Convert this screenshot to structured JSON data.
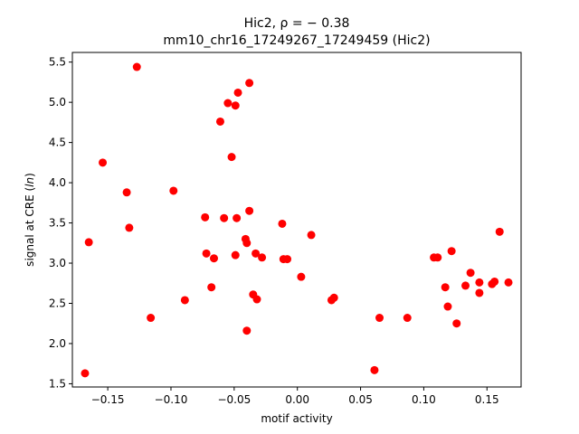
{
  "chart_data": {
    "type": "scatter",
    "title_line1": "Hic2, ρ = − 0.38",
    "title_line2": "mm10_chr16_17249267_17249459 (Hic2)",
    "xlabel": "motif activity",
    "ylabel": "signal at CRE (ln)",
    "xlim": [
      -0.178,
      0.177
    ],
    "ylim": [
      1.46,
      5.62
    ],
    "xticks": [
      -0.15,
      -0.1,
      -0.05,
      0.0,
      0.05,
      0.1,
      0.15
    ],
    "xtick_labels": [
      "−0.15",
      "−0.10",
      "−0.05",
      "0.00",
      "0.05",
      "0.10",
      "0.15"
    ],
    "yticks": [
      1.5,
      2.0,
      2.5,
      3.0,
      3.5,
      4.0,
      4.5,
      5.0,
      5.5
    ],
    "ytick_labels": [
      "1.5",
      "2.0",
      "2.5",
      "3.0",
      "3.5",
      "4.0",
      "4.5",
      "5.0",
      "5.5"
    ],
    "grid": false,
    "marker_color": "#ff0000",
    "points": [
      {
        "x": -0.168,
        "y": 1.63
      },
      {
        "x": -0.165,
        "y": 3.26
      },
      {
        "x": -0.154,
        "y": 4.25
      },
      {
        "x": -0.135,
        "y": 3.88
      },
      {
        "x": -0.133,
        "y": 3.44
      },
      {
        "x": -0.127,
        "y": 5.44
      },
      {
        "x": -0.116,
        "y": 2.32
      },
      {
        "x": -0.098,
        "y": 3.9
      },
      {
        "x": -0.089,
        "y": 2.54
      },
      {
        "x": -0.073,
        "y": 3.57
      },
      {
        "x": -0.072,
        "y": 3.12
      },
      {
        "x": -0.068,
        "y": 2.7
      },
      {
        "x": -0.066,
        "y": 3.06
      },
      {
        "x": -0.061,
        "y": 4.76
      },
      {
        "x": -0.058,
        "y": 3.56
      },
      {
        "x": -0.055,
        "y": 4.99
      },
      {
        "x": -0.052,
        "y": 4.32
      },
      {
        "x": -0.049,
        "y": 4.96
      },
      {
        "x": -0.049,
        "y": 3.1
      },
      {
        "x": -0.048,
        "y": 3.56
      },
      {
        "x": -0.047,
        "y": 5.12
      },
      {
        "x": -0.041,
        "y": 3.3
      },
      {
        "x": -0.04,
        "y": 3.25
      },
      {
        "x": -0.04,
        "y": 2.16
      },
      {
        "x": -0.038,
        "y": 5.24
      },
      {
        "x": -0.038,
        "y": 3.65
      },
      {
        "x": -0.035,
        "y": 2.61
      },
      {
        "x": -0.033,
        "y": 3.12
      },
      {
        "x": -0.032,
        "y": 2.55
      },
      {
        "x": -0.028,
        "y": 3.07
      },
      {
        "x": -0.012,
        "y": 3.49
      },
      {
        "x": -0.011,
        "y": 3.05
      },
      {
        "x": -0.008,
        "y": 3.05
      },
      {
        "x": 0.003,
        "y": 2.83
      },
      {
        "x": 0.011,
        "y": 3.35
      },
      {
        "x": 0.027,
        "y": 2.54
      },
      {
        "x": 0.029,
        "y": 2.57
      },
      {
        "x": 0.061,
        "y": 1.67
      },
      {
        "x": 0.065,
        "y": 2.32
      },
      {
        "x": 0.087,
        "y": 2.32
      },
      {
        "x": 0.108,
        "y": 3.07
      },
      {
        "x": 0.111,
        "y": 3.07
      },
      {
        "x": 0.117,
        "y": 2.7
      },
      {
        "x": 0.119,
        "y": 2.46
      },
      {
        "x": 0.122,
        "y": 3.15
      },
      {
        "x": 0.126,
        "y": 2.25
      },
      {
        "x": 0.133,
        "y": 2.72
      },
      {
        "x": 0.137,
        "y": 2.88
      },
      {
        "x": 0.144,
        "y": 2.76
      },
      {
        "x": 0.144,
        "y": 2.63
      },
      {
        "x": 0.154,
        "y": 2.74
      },
      {
        "x": 0.156,
        "y": 2.77
      },
      {
        "x": 0.16,
        "y": 3.39
      },
      {
        "x": 0.167,
        "y": 2.76
      }
    ]
  }
}
